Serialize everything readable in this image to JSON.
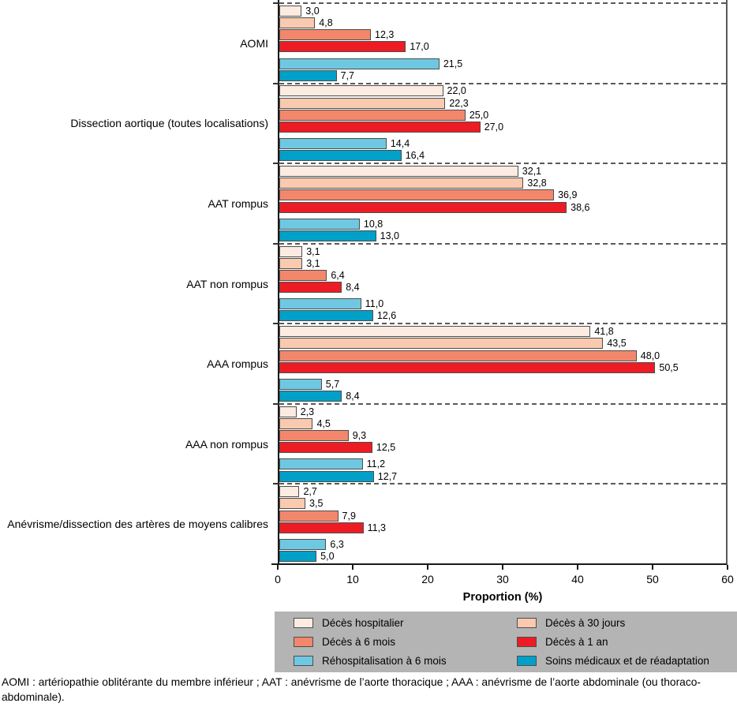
{
  "chart_data": {
    "type": "bar",
    "orientation": "horizontal",
    "xlabel": "Proportion (%)",
    "xlim": [
      0,
      60
    ],
    "xticks": [
      "0",
      "10",
      "20",
      "30",
      "40",
      "50",
      "60"
    ],
    "grid": "dashed horizontal separators between category groups",
    "legend_position": "bottom",
    "categories": [
      "AOMI",
      "Dissection aortique (toutes localisations)",
      "AAT rompus",
      "AAT non rompus",
      "AAA rompus",
      "AAA non rompus",
      "Anévrisme/dissection des artères de moyens calibres"
    ],
    "series": [
      {
        "name": "Décès hospitalier",
        "color": "#fcebe0",
        "values": [
          3.0,
          22.0,
          32.1,
          3.1,
          41.8,
          2.3,
          2.7
        ],
        "labels": [
          "3,0",
          "22,0",
          "32,1",
          "3,1",
          "41,8",
          "2,3",
          "2,7"
        ]
      },
      {
        "name": "Décès à 30 jours",
        "color": "#f9caaf",
        "values": [
          4.8,
          22.3,
          32.8,
          3.1,
          43.5,
          4.5,
          3.5
        ],
        "labels": [
          "4,8",
          "22,3",
          "32,8",
          "3,1",
          "43,5",
          "4,5",
          "3,5"
        ]
      },
      {
        "name": "Décès à 6 mois",
        "color": "#f3876c",
        "values": [
          12.3,
          25.0,
          36.9,
          6.4,
          48.0,
          9.3,
          7.9
        ],
        "labels": [
          "12,3",
          "25,0",
          "36,9",
          "6,4",
          "48,0",
          "9,3",
          "7,9"
        ]
      },
      {
        "name": "Décès à 1 an",
        "color": "#ed1c24",
        "values": [
          17.0,
          27.0,
          38.6,
          8.4,
          50.5,
          12.5,
          11.3
        ],
        "labels": [
          "17,0",
          "27,0",
          "38,6",
          "8,4",
          "50,5",
          "12,5",
          "11,3"
        ]
      },
      {
        "name": "Réhospitalisation à 6 mois",
        "color": "#6fc8e2",
        "values": [
          21.5,
          14.4,
          10.8,
          11.0,
          5.7,
          11.2,
          6.3
        ],
        "labels": [
          "21,5",
          "14,4",
          "10,8",
          "11,0",
          "5,7",
          "11,2",
          "6,3"
        ]
      },
      {
        "name": "Soins médicaux et de réadaptation",
        "color": "#00a0c8",
        "values": [
          7.7,
          16.4,
          13.0,
          12.6,
          8.4,
          12.7,
          5.0
        ],
        "labels": [
          "7,7",
          "16,4",
          "13,0",
          "12,6",
          "8,4",
          "12,7",
          "5,0"
        ]
      }
    ]
  },
  "colors": {
    "axis": "#1a1a1a",
    "group_separator": "#595959",
    "bar_border": "#4d4d4d",
    "legend_background": "#b4b4b4",
    "text": "#000000"
  },
  "footnote": "AOMI : artériopathie oblitérante du membre inférieur ; AAT : anévrisme de l’aorte thoracique ; AAA : anévrisme de l’aorte abdominale (ou thoraco-abdominale)."
}
